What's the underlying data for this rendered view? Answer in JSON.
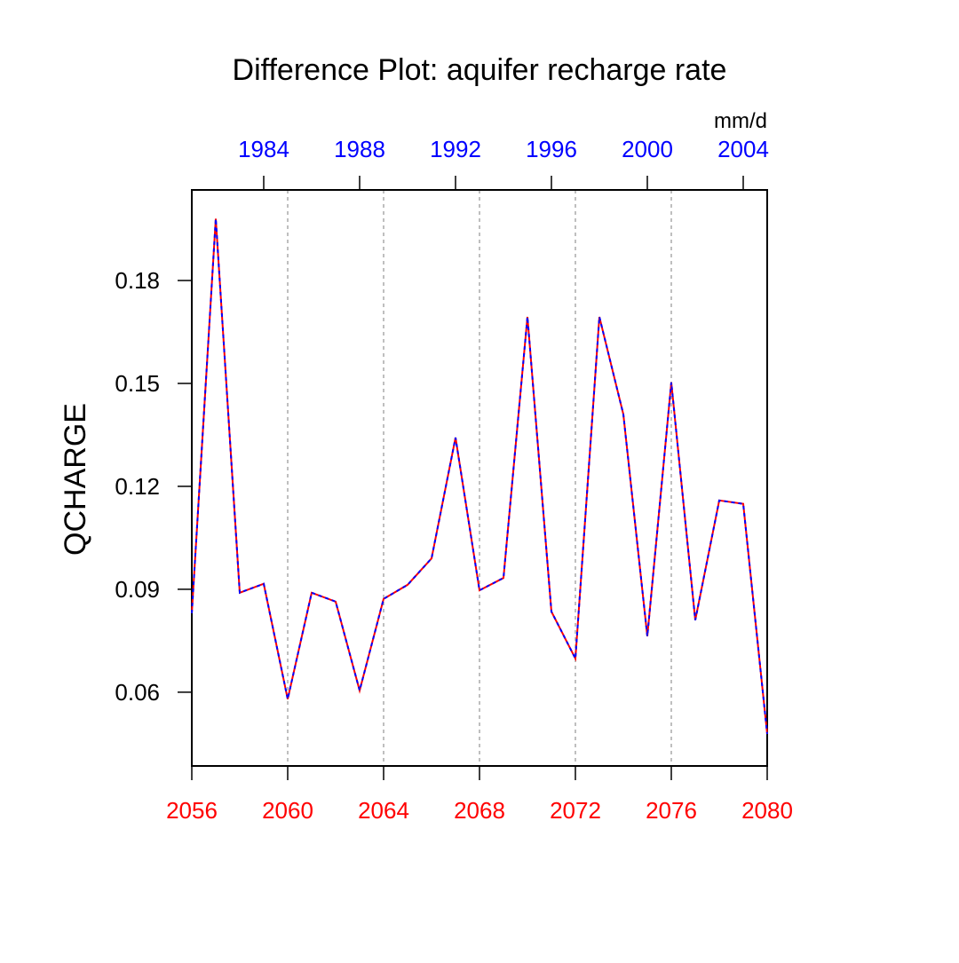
{
  "chart_data": {
    "type": "line",
    "title": "Difference Plot: aquifer recharge rate",
    "units": "mm/d",
    "y_label": "QCHARGE",
    "x": [
      2056,
      2057,
      2058,
      2059,
      2060,
      2061,
      2062,
      2063,
      2064,
      2065,
      2066,
      2067,
      2068,
      2069,
      2070,
      2071,
      2072,
      2073,
      2074,
      2075,
      2076,
      2077,
      2078,
      2079,
      2080
    ],
    "series": [
      {
        "color": "#ff0000",
        "dashed": false,
        "values": [
          0.083,
          0.198,
          0.089,
          0.0916,
          0.058,
          0.089,
          0.0864,
          0.0605,
          0.0872,
          0.0913,
          0.099,
          0.1342,
          0.0897,
          0.0933,
          0.1694,
          0.0835,
          0.0698,
          0.1694,
          0.141,
          0.0763,
          0.1503,
          0.081,
          0.1159,
          0.1149,
          0.0478
        ]
      },
      {
        "color": "#0000ff",
        "dashed": true,
        "values": [
          0.083,
          0.198,
          0.089,
          0.0916,
          0.058,
          0.089,
          0.0864,
          0.0605,
          0.0872,
          0.0913,
          0.099,
          0.1342,
          0.0897,
          0.0933,
          0.1694,
          0.0835,
          0.0698,
          0.1694,
          0.141,
          0.0763,
          0.1503,
          0.081,
          0.1159,
          0.1149,
          0.0478
        ]
      }
    ],
    "xlim": [
      2056,
      2080
    ],
    "xticks": [
      2056,
      2060,
      2064,
      2068,
      2072,
      2076,
      2080
    ],
    "xtick_color": "#ff0000",
    "x2lim": [
      1981,
      2005
    ],
    "x2ticks": [
      1984,
      1988,
      1992,
      1996,
      2000,
      2004
    ],
    "x2tick_color": "#0000ff",
    "ylim": [
      0.0385,
      0.2064
    ],
    "yticks": [
      0.06,
      0.09,
      0.12,
      0.15,
      0.18
    ],
    "x_grid": true,
    "grid_color": "#aaaaaa"
  }
}
